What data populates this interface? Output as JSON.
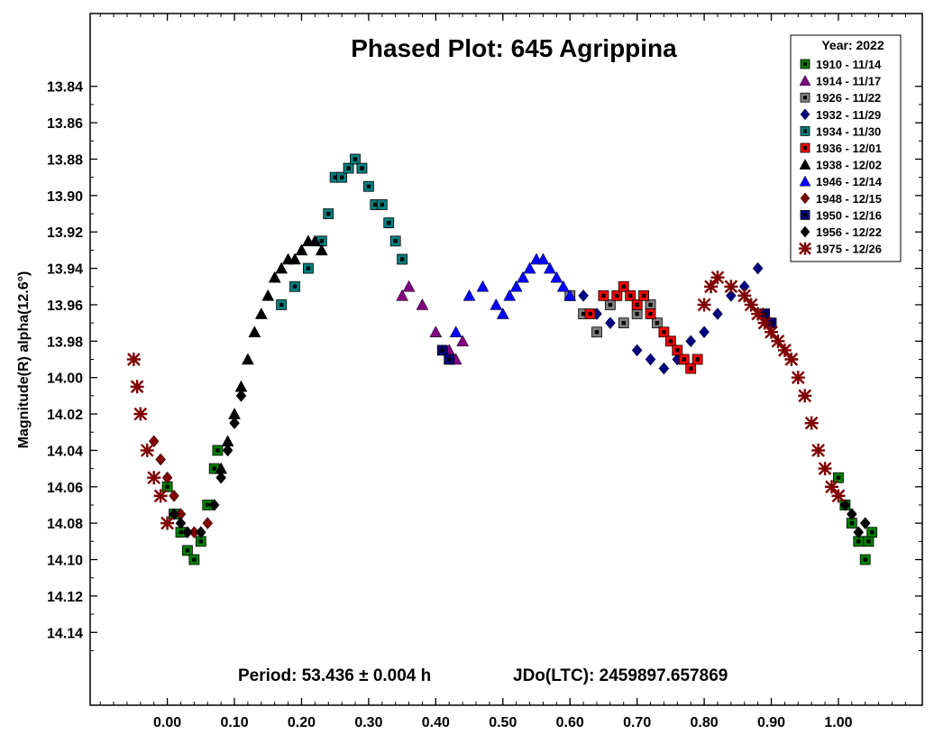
{
  "chart_data": {
    "type": "scatter",
    "title": "Phased Plot: 645 Agrippina",
    "ylabel": "Magnitude(R) alpha(12.6°)",
    "xlabel": "",
    "xlim": [
      -0.115,
      1.125
    ],
    "ylim": [
      14.18,
      13.8
    ],
    "y_inverted": true,
    "x_ticks": [
      "0.00",
      "0.10",
      "0.20",
      "0.30",
      "0.40",
      "0.50",
      "0.60",
      "0.70",
      "0.80",
      "0.90",
      "1.00"
    ],
    "y_ticks": [
      "13.84",
      "13.86",
      "13.88",
      "13.90",
      "13.92",
      "13.94",
      "13.96",
      "13.98",
      "14.00",
      "14.02",
      "14.04",
      "14.06",
      "14.08",
      "14.10",
      "14.12",
      "14.14"
    ],
    "period_text": "Period: 53.436 ± 0.004 h",
    "epoch_text": "JDo(LTC): 2459897.657869",
    "legend_title": "Year: 2022",
    "legend_placement": "top-right",
    "grid": false,
    "series": [
      {
        "name": "1910 - 11/14",
        "marker": "square",
        "color": "#008000",
        "inner": "#000000",
        "x": [
          0.0,
          0.01,
          0.02,
          0.03,
          0.04,
          0.05,
          0.06,
          0.07,
          0.075,
          1.0,
          1.01,
          1.02,
          1.03,
          1.04,
          1.045,
          1.05
        ],
        "y": [
          14.06,
          14.075,
          14.085,
          14.095,
          14.1,
          14.09,
          14.07,
          14.05,
          14.04,
          14.055,
          14.07,
          14.08,
          14.09,
          14.1,
          14.09,
          14.085
        ]
      },
      {
        "name": "1914 - 11/17",
        "marker": "triangle",
        "color": "#800080",
        "x": [
          0.35,
          0.36,
          0.38,
          0.4,
          0.42,
          0.43,
          0.44
        ],
        "y": [
          13.955,
          13.95,
          13.96,
          13.975,
          13.985,
          13.99,
          13.98
        ]
      },
      {
        "name": "1926 - 11/22",
        "marker": "square",
        "color": "#808080",
        "inner": "#000000",
        "x": [
          0.6,
          0.62,
          0.64,
          0.66,
          0.68,
          0.7,
          0.72,
          0.73
        ],
        "y": [
          13.955,
          13.965,
          13.975,
          13.96,
          13.97,
          13.965,
          13.96,
          13.97
        ]
      },
      {
        "name": "1932 - 11/29",
        "marker": "diamond",
        "color": "#000080",
        "x": [
          0.62,
          0.64,
          0.66,
          0.7,
          0.72,
          0.74,
          0.76,
          0.78,
          0.8,
          0.82,
          0.84,
          0.86,
          0.88
        ],
        "y": [
          13.955,
          13.965,
          13.97,
          13.985,
          13.99,
          13.995,
          13.99,
          13.98,
          13.975,
          13.965,
          13.955,
          13.95,
          13.94
        ]
      },
      {
        "name": "1934 - 11/30",
        "marker": "square",
        "color": "#008080",
        "inner": "#000000",
        "x": [
          0.17,
          0.19,
          0.21,
          0.23,
          0.24,
          0.25,
          0.26,
          0.27,
          0.28,
          0.29,
          0.3,
          0.31,
          0.32,
          0.33,
          0.34,
          0.35
        ],
        "y": [
          13.96,
          13.95,
          13.94,
          13.925,
          13.91,
          13.89,
          13.89,
          13.885,
          13.88,
          13.885,
          13.895,
          13.905,
          13.905,
          13.915,
          13.925,
          13.935
        ]
      },
      {
        "name": "1936 - 12/01",
        "marker": "square",
        "color": "#ff0000",
        "inner": "#000000",
        "x": [
          0.63,
          0.65,
          0.67,
          0.68,
          0.69,
          0.7,
          0.71,
          0.72,
          0.74,
          0.75,
          0.76,
          0.77,
          0.78,
          0.79
        ],
        "y": [
          13.965,
          13.955,
          13.955,
          13.95,
          13.955,
          13.96,
          13.955,
          13.965,
          13.975,
          13.98,
          13.985,
          13.99,
          13.995,
          13.99
        ]
      },
      {
        "name": "1938 - 12/02",
        "marker": "triangle",
        "color": "#000000",
        "x": [
          0.08,
          0.09,
          0.1,
          0.11,
          0.12,
          0.13,
          0.14,
          0.15,
          0.16,
          0.17,
          0.18,
          0.19,
          0.2,
          0.21,
          0.22,
          0.23
        ],
        "y": [
          14.05,
          14.035,
          14.02,
          14.005,
          13.99,
          13.975,
          13.965,
          13.955,
          13.945,
          13.94,
          13.935,
          13.935,
          13.93,
          13.925,
          13.925,
          13.93
        ]
      },
      {
        "name": "1946 - 12/14",
        "marker": "triangle",
        "color": "#0000ff",
        "x": [
          0.43,
          0.45,
          0.47,
          0.49,
          0.5,
          0.51,
          0.52,
          0.53,
          0.54,
          0.55,
          0.56,
          0.57,
          0.58,
          0.59,
          0.6
        ],
        "y": [
          13.975,
          13.955,
          13.95,
          13.96,
          13.965,
          13.955,
          13.95,
          13.945,
          13.94,
          13.935,
          13.935,
          13.94,
          13.945,
          13.95,
          13.955
        ]
      },
      {
        "name": "1948 - 12/15",
        "marker": "diamond",
        "color": "#800000",
        "x": [
          -0.02,
          -0.01,
          0.0,
          0.01,
          0.02,
          0.04,
          0.06
        ],
        "y": [
          14.035,
          14.045,
          14.055,
          14.065,
          14.075,
          14.085,
          14.08
        ]
      },
      {
        "name": "1950 - 12/16",
        "marker": "square",
        "color": "#000080",
        "inner": "#000000",
        "x": [
          0.41,
          0.42,
          0.89,
          0.9
        ],
        "y": [
          13.985,
          13.99,
          13.965,
          13.97
        ]
      },
      {
        "name": "1956 - 12/22",
        "marker": "diamond",
        "color": "#000000",
        "x": [
          0.01,
          0.02,
          0.03,
          0.05,
          0.07,
          0.08,
          0.09,
          0.1,
          0.11,
          1.01,
          1.02,
          1.03,
          1.04
        ],
        "y": [
          14.075,
          14.08,
          14.085,
          14.085,
          14.07,
          14.055,
          14.04,
          14.025,
          14.01,
          14.07,
          14.075,
          14.085,
          14.08
        ]
      },
      {
        "name": "1975 - 12/26",
        "marker": "cross",
        "color": "#800000",
        "x": [
          -0.05,
          -0.045,
          -0.04,
          -0.03,
          -0.02,
          -0.01,
          0.0,
          0.8,
          0.81,
          0.82,
          0.84,
          0.86,
          0.87,
          0.88,
          0.89,
          0.9,
          0.91,
          0.92,
          0.93,
          0.94,
          0.95,
          0.96,
          0.97,
          0.98,
          0.99,
          1.0
        ],
        "y": [
          13.99,
          14.005,
          14.02,
          14.04,
          14.055,
          14.065,
          14.08,
          13.96,
          13.95,
          13.945,
          13.95,
          13.955,
          13.96,
          13.965,
          13.97,
          13.975,
          13.98,
          13.985,
          13.99,
          14.0,
          14.01,
          14.025,
          14.04,
          14.05,
          14.06,
          14.065
        ]
      }
    ]
  }
}
